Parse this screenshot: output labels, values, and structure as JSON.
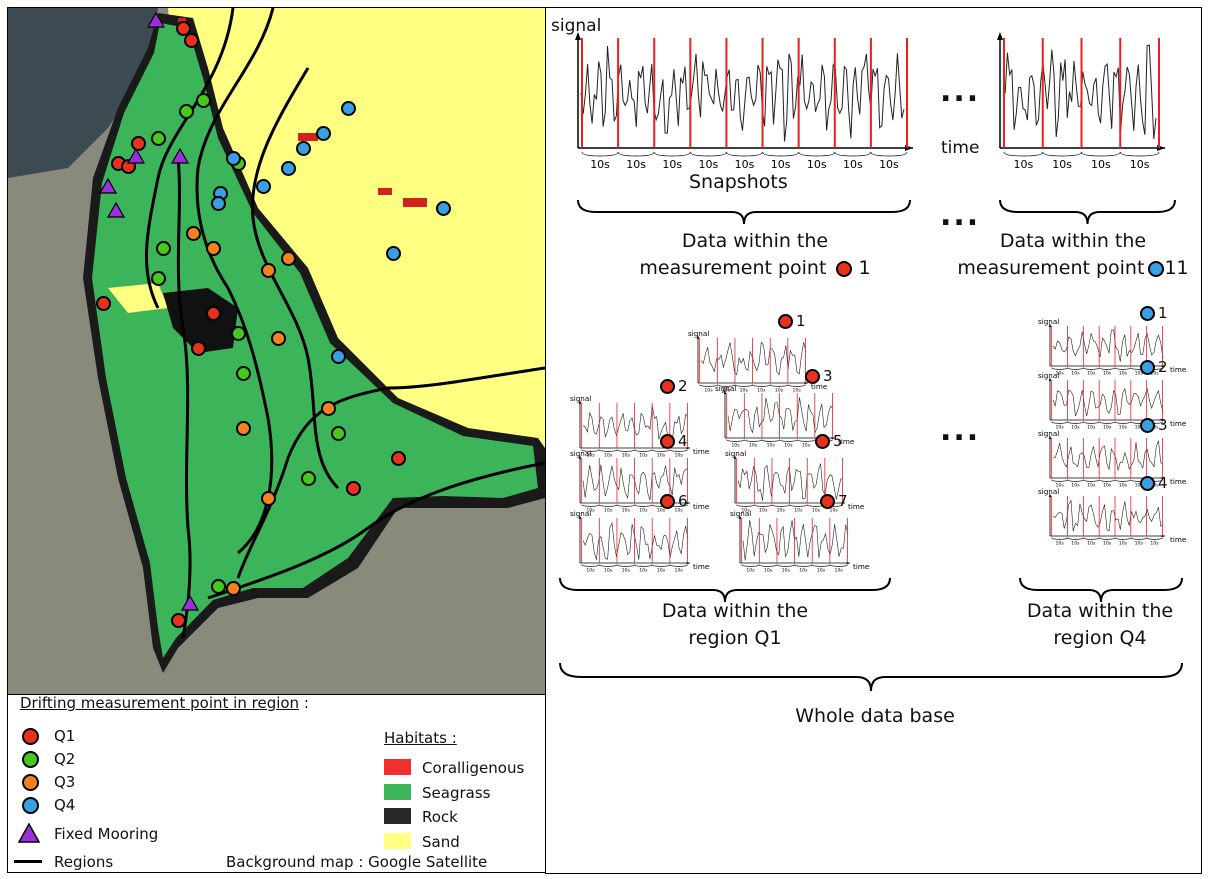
{
  "legend": {
    "drifting_title": "Drifting measurement point in region",
    "drifting_colon": " :",
    "regions": [
      {
        "name": "Q1",
        "color": "#e8321e"
      },
      {
        "name": "Q2",
        "color": "#46c81e"
      },
      {
        "name": "Q3",
        "color": "#f5821e"
      },
      {
        "name": "Q4",
        "color": "#3a9ee4"
      }
    ],
    "fixed_mooring": "Fixed Mooring",
    "fixed_mooring_color": "#9b30d9",
    "regions_line": "Regions",
    "habitats_title": "Habitats :",
    "habitats": [
      {
        "name": "Coralligenous",
        "color": "#f03030"
      },
      {
        "name": "Seagrass",
        "color": "#3cb45a"
      },
      {
        "name": "Rock",
        "color": "#282828"
      },
      {
        "name": "Sand",
        "color": "#ffff82"
      }
    ],
    "background_note": "Background map : Google Satellite"
  },
  "diagram": {
    "signal_label": "signal",
    "time_label": "time",
    "snap_unit": "10s",
    "snapshots_label": "Snapshots",
    "ellipsis": "...",
    "mp_caption_1_line1": "Data within the",
    "mp_caption_1_line2": "measurement point",
    "mp_caption_1_num": "1",
    "mp_caption_2_line1": "Data within the",
    "mp_caption_2_line2": "measurement point",
    "mp_caption_2_num": "11",
    "q1_numbers": [
      "1",
      "2",
      "3",
      "4",
      "5",
      "6",
      "7"
    ],
    "q4_numbers": [
      "1",
      "2",
      "3",
      "4"
    ],
    "region_q1_line1": "Data within the",
    "region_q1_line2": "region Q1",
    "region_q4_line1": "Data within the",
    "region_q4_line2": "region Q4",
    "whole_db": "Whole data base",
    "q1_color": "#e8321e",
    "q4_color": "#3a9ee4",
    "snapshot_line_color": "#e82020"
  }
}
